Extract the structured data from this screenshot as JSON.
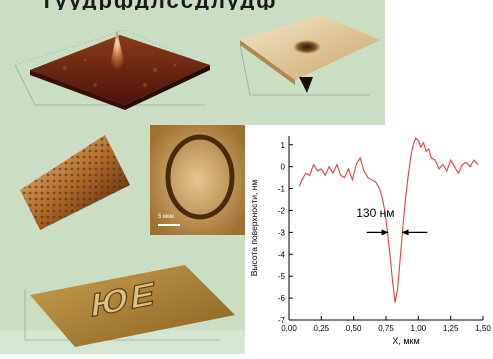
{
  "title_fragment": "Туудрфдлссдлудф",
  "images": [
    {
      "name": "afm-3d-peak",
      "description_icon": "surface-peak"
    },
    {
      "name": "afm-3d-pit",
      "description_icon": "surface-pit"
    },
    {
      "name": "afm-hex-lattice",
      "description_icon": "lattice"
    },
    {
      "name": "afm-oval-ring",
      "description_icon": "oval-ring"
    },
    {
      "name": "afm-letters",
      "description_icon": "letters"
    }
  ],
  "oval_scale_label": "5 мкм",
  "letters_text": "ЮЕ",
  "colors": {
    "panel_green": "#c6dcc0",
    "trace": "#e04040",
    "arrow": "#000000"
  },
  "chart_data": {
    "type": "line",
    "title": "",
    "xlabel": "X, мкм",
    "ylabel": "Высота поверхности, нм",
    "xlim": [
      0.0,
      1.5
    ],
    "ylim": [
      -7,
      1.4
    ],
    "xticks": [
      "0,00",
      "0,25",
      "0,50",
      "0,75",
      "1,00",
      "1,25",
      "1,50"
    ],
    "yticks": [
      "1",
      "0",
      "-1",
      "-2",
      "-3",
      "-4",
      "-5",
      "-6",
      "-7"
    ],
    "annotation": "130 нм",
    "series": [
      {
        "color": "#e04040",
        "x": [
          0.08,
          0.1,
          0.13,
          0.16,
          0.19,
          0.22,
          0.25,
          0.28,
          0.31,
          0.34,
          0.37,
          0.4,
          0.43,
          0.46,
          0.49,
          0.52,
          0.55,
          0.58,
          0.61,
          0.64,
          0.67,
          0.7,
          0.72,
          0.74,
          0.76,
          0.78,
          0.8,
          0.82,
          0.84,
          0.86,
          0.88,
          0.9,
          0.92,
          0.94,
          0.96,
          0.98,
          1.0,
          1.02,
          1.04,
          1.06,
          1.08,
          1.1,
          1.13,
          1.16,
          1.19,
          1.22,
          1.25,
          1.28,
          1.31,
          1.34,
          1.37,
          1.4,
          1.43,
          1.46
        ],
        "y": [
          -0.9,
          -0.6,
          -0.3,
          -0.4,
          0.1,
          -0.2,
          -0.1,
          -0.4,
          0.0,
          -0.3,
          0.1,
          -0.4,
          -0.5,
          -0.1,
          -0.6,
          0.1,
          0.4,
          -0.2,
          -0.5,
          -0.6,
          -0.7,
          -1.0,
          -1.4,
          -2.0,
          -2.9,
          -4.0,
          -5.2,
          -6.2,
          -5.6,
          -4.2,
          -2.8,
          -1.5,
          -0.5,
          0.4,
          1.0,
          1.3,
          1.2,
          0.9,
          1.1,
          0.7,
          0.8,
          0.4,
          0.3,
          -0.1,
          0.1,
          -0.2,
          0.3,
          0.0,
          -0.3,
          0.1,
          0.2,
          0.0,
          0.3,
          0.1
        ]
      }
    ]
  }
}
